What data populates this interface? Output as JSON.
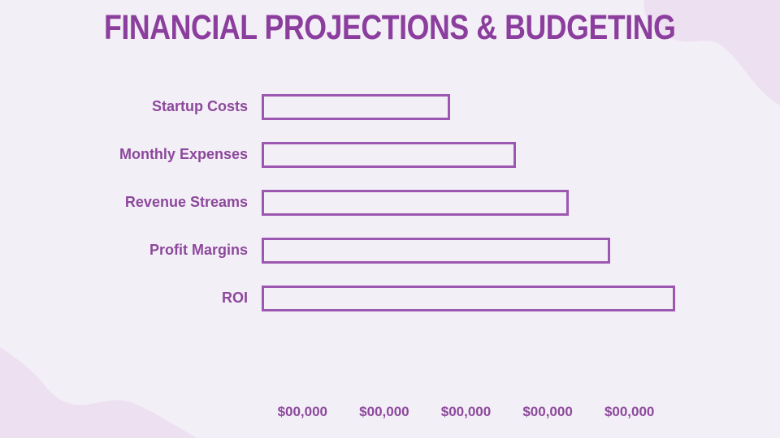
{
  "slide": {
    "title": "FINANCIAL PROJECTIONS & BUDGETING"
  },
  "colors": {
    "background": "#f3eff6",
    "blob": "#ece0f1",
    "title_text": "#8b3e9d",
    "label_text": "#8c489c",
    "bar_border": "#9c58b1"
  },
  "chart_data": {
    "type": "bar",
    "orientation": "horizontal",
    "title": "",
    "categories": [
      "Startup Costs",
      "Monthly Expenses",
      "Revenue Streams",
      "Profit Margins",
      "ROI"
    ],
    "values": [
      45,
      61,
      74,
      84,
      100
    ],
    "value_unit": "percent-of-axis-width",
    "x_tick_labels": [
      "$00,000",
      "$00,000",
      "$00,000",
      "$00,000",
      "$00,000"
    ],
    "bar_style": "outlined-unfilled",
    "grid": false,
    "legend": false
  }
}
